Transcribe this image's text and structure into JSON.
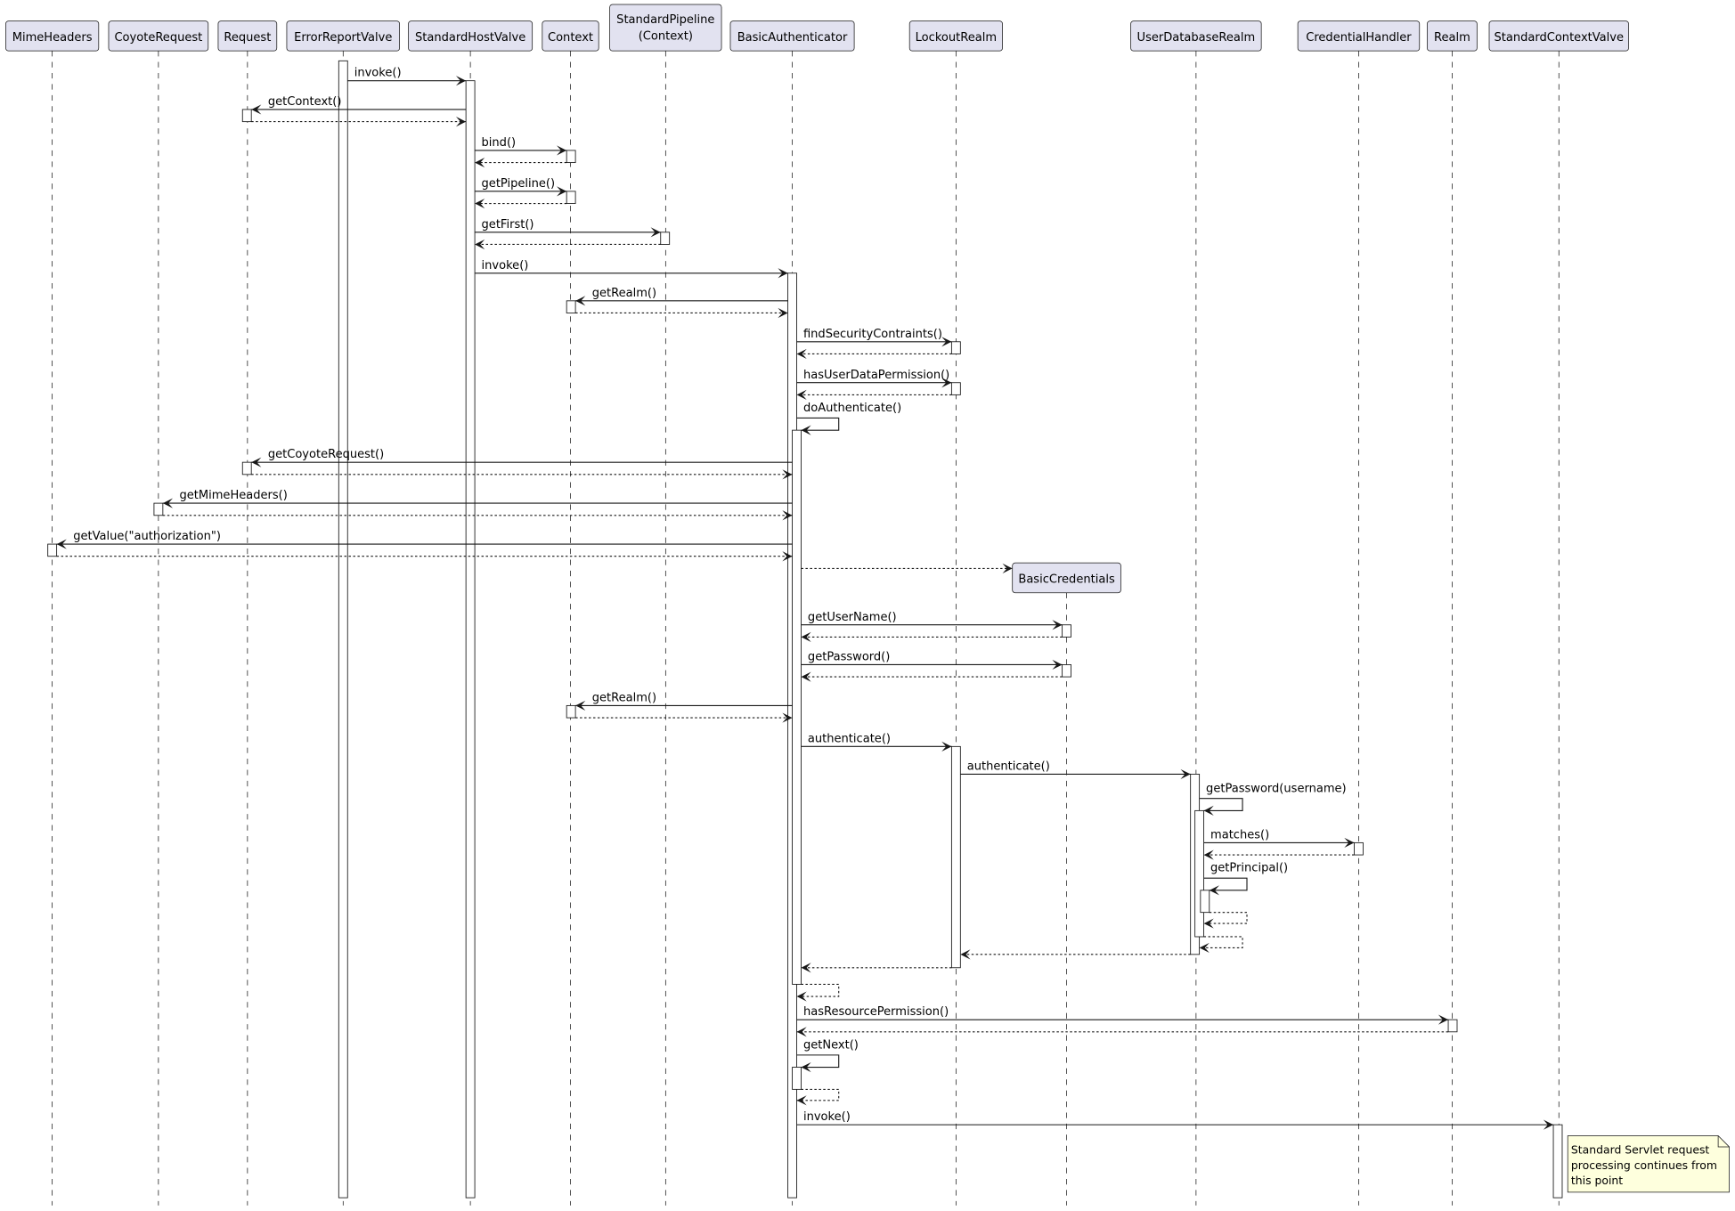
{
  "participants": [
    {
      "id": "mime",
      "label": [
        "MimeHeaders"
      ]
    },
    {
      "id": "coyote",
      "label": [
        "CoyoteRequest"
      ]
    },
    {
      "id": "request",
      "label": [
        "Request"
      ]
    },
    {
      "id": "errorvalve",
      "label": [
        "ErrorReportValve"
      ]
    },
    {
      "id": "hostvalve",
      "label": [
        "StandardHostValve"
      ]
    },
    {
      "id": "context",
      "label": [
        "Context"
      ]
    },
    {
      "id": "pipeline",
      "label": [
        "StandardPipeline",
        "(Context)"
      ]
    },
    {
      "id": "basicauth",
      "label": [
        "BasicAuthenticator"
      ]
    },
    {
      "id": "lockout",
      "label": [
        "LockoutRealm"
      ]
    },
    {
      "id": "userdb",
      "label": [
        "UserDatabaseRealm"
      ]
    },
    {
      "id": "credhandler",
      "label": [
        "CredentialHandler"
      ]
    },
    {
      "id": "realm",
      "label": [
        "Realm"
      ]
    },
    {
      "id": "ctxvalve",
      "label": [
        "StandardContextValve"
      ]
    }
  ],
  "created_participant": {
    "id": "basiccreds",
    "label": "BasicCredentials"
  },
  "messages": [
    "invoke()",
    "getContext()",
    "",
    "bind()",
    "",
    "getPipeline()",
    "",
    "getFirst()",
    "",
    "invoke()",
    "getRealm()",
    "",
    "findSecurityContraints()",
    "",
    "hasUserDataPermission()",
    "",
    "doAuthenticate()",
    "getCoyoteRequest()",
    "",
    "getMimeHeaders()",
    "",
    "getValue(\"authorization\")",
    "",
    "",
    "getUserName()",
    "",
    "getPassword()",
    "",
    "getRealm()",
    "",
    "authenticate()",
    "authenticate()",
    "getPassword(username)",
    "matches()",
    "",
    "getPrincipal()",
    "",
    "",
    "",
    "",
    "",
    "hasResourcePermission()",
    "",
    "getNext()",
    "",
    "invoke()"
  ],
  "note": {
    "lines": [
      "Standard Servlet request",
      "processing continues from",
      "this point"
    ]
  },
  "colors": {
    "participant_fill": "#E2E2F0",
    "border": "#181818",
    "note_fill": "#FEFFDD",
    "lifeline": "#181818"
  }
}
